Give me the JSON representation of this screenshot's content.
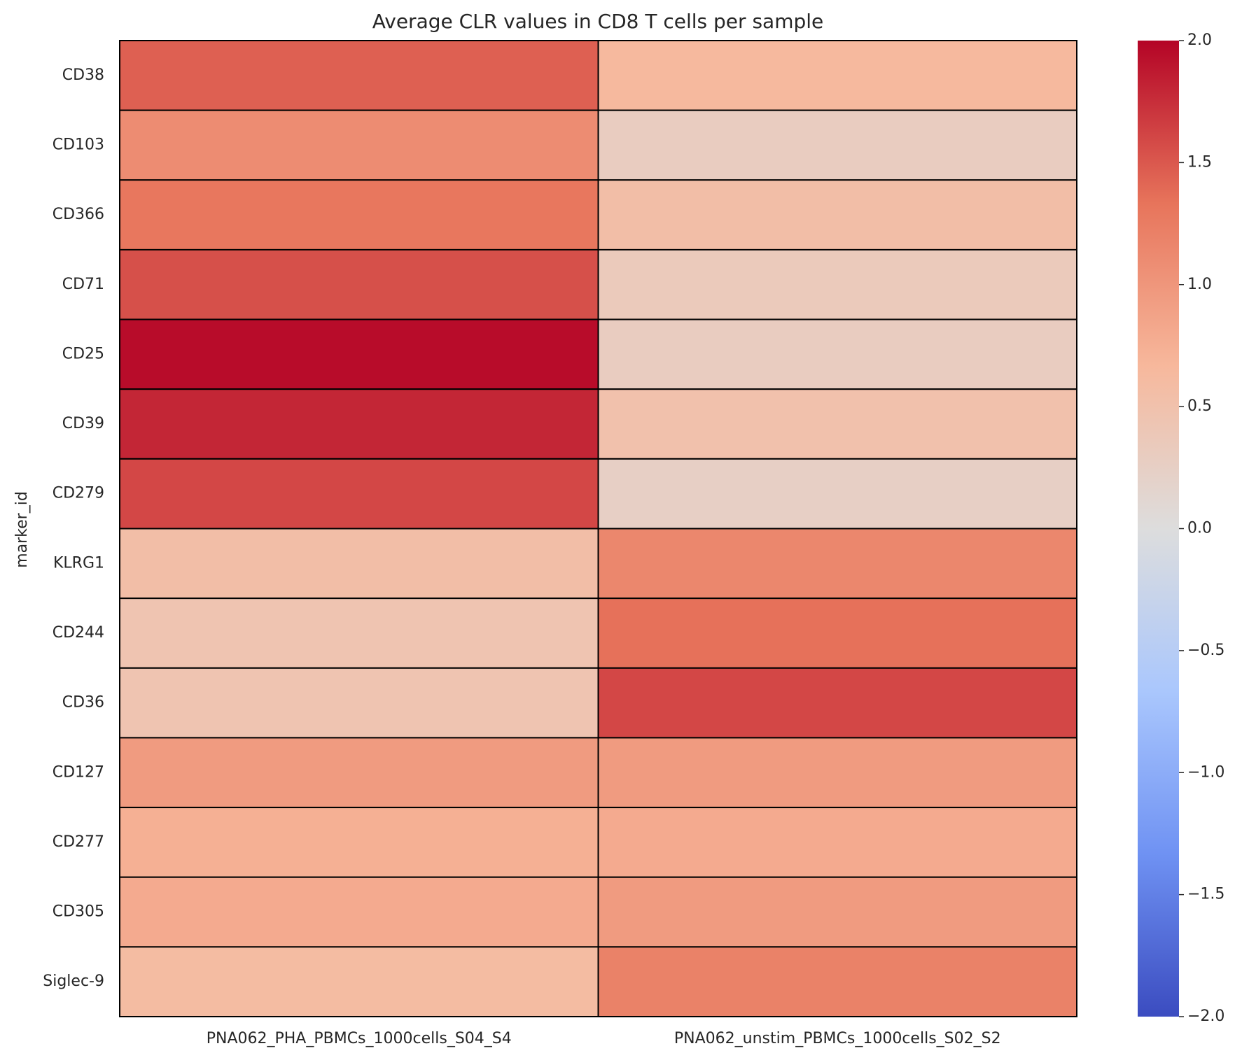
{
  "chart_data": {
    "type": "heatmap",
    "title": "Average CLR values in CD8 T cells per sample",
    "ylabel": "marker_id",
    "columns": [
      "PNA062_PHA_PBMCs_1000cells_S04_S4",
      "PNA062_unstim_PBMCs_1000cells_S02_S2"
    ],
    "rows": [
      "CD38",
      "CD103",
      "CD366",
      "CD71",
      "CD25",
      "CD39",
      "CD279",
      "KLRG1",
      "CD244",
      "CD36",
      "CD127",
      "CD277",
      "CD305",
      "Siglec-9"
    ],
    "values": [
      [
        1.45,
        0.65
      ],
      [
        1.1,
        0.3
      ],
      [
        1.3,
        0.55
      ],
      [
        1.55,
        0.35
      ],
      [
        1.95,
        0.3
      ],
      [
        1.8,
        0.5
      ],
      [
        1.6,
        0.25
      ],
      [
        0.55,
        1.15
      ],
      [
        0.45,
        1.35
      ],
      [
        0.45,
        1.6
      ],
      [
        0.95,
        0.95
      ],
      [
        0.75,
        0.8
      ],
      [
        0.8,
        0.95
      ],
      [
        0.6,
        1.2
      ]
    ],
    "colormap": [
      "#3b4cc0",
      "#6f92f3",
      "#aac7fd",
      "#dddddd",
      "#f7b89c",
      "#e7745b",
      "#b40426"
    ],
    "clim": [
      -2,
      2
    ],
    "cticks": [
      {
        "value": -2,
        "label": "−2.0"
      },
      {
        "value": -1.5,
        "label": "−1.5"
      },
      {
        "value": -1,
        "label": "−1.0"
      },
      {
        "value": -0.5,
        "label": "−0.5"
      },
      {
        "value": 0,
        "label": "0.0"
      },
      {
        "value": 0.5,
        "label": "0.5"
      },
      {
        "value": 1,
        "label": "1.0"
      },
      {
        "value": 1.5,
        "label": "1.5"
      },
      {
        "value": 2,
        "label": "2.0"
      }
    ]
  }
}
